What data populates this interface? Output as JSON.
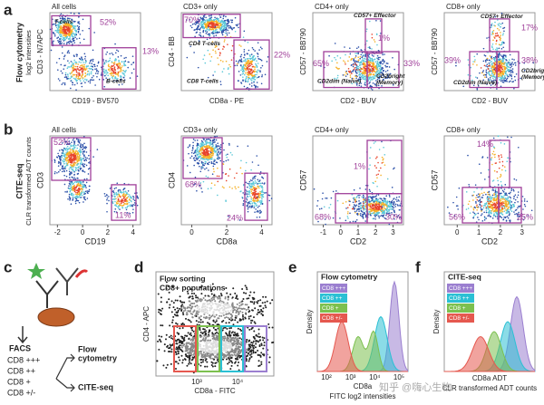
{
  "row_a": {
    "letter": "a",
    "ylabel": [
      "Flow cytometry",
      "log2 intensities"
    ],
    "panels": [
      {
        "title": "All cells",
        "xlabel": "CD19 - BV570",
        "ylabel": "CD3 - N7APC",
        "gates": [
          {
            "label": [
              "T-cells"
            ],
            "pct": "52%"
          },
          {
            "label": [
              "B-cells"
            ],
            "pct": "13%"
          }
        ]
      },
      {
        "title": "CD3+ only",
        "xlabel": "CD8a - PE",
        "ylabel": "CD4 - BB",
        "gates": [
          {
            "label": [
              "CD4 T-cells"
            ],
            "pct": "70%"
          },
          {
            "label": [
              "CD8 T-cells"
            ],
            "pct": "22%"
          }
        ]
      },
      {
        "title": "CD4+ only",
        "xlabel": "CD2 - BUV",
        "ylabel": "CD57 - BB790",
        "gates": [
          {
            "label": [
              "CD57+ Effector"
            ],
            "pct": "1%"
          },
          {
            "label": [
              "CD2dim (Naive)"
            ],
            "pct": "65%"
          },
          {
            "label": [
              "CD2bright",
              "(Memory)"
            ],
            "pct": "33%"
          }
        ]
      },
      {
        "title": "CD8+ only",
        "xlabel": "CD2 - BUV",
        "ylabel": "CD57 - BB790",
        "gates": [
          {
            "label": [
              "CD57+ Effector"
            ],
            "pct": "17%"
          },
          {
            "label": [
              "CD2dim (Naive)"
            ],
            "pct": "39%"
          },
          {
            "label": [
              "CD2bright",
              "(Memory)"
            ],
            "pct": "38%"
          }
        ]
      }
    ]
  },
  "row_b": {
    "letter": "b",
    "ylabel": [
      "CITE-seq",
      "CLR transformed ADT counts"
    ],
    "panels": [
      {
        "title": "All cells",
        "xlabel": "CD19",
        "ylabel": "CD3",
        "xticks": [
          -2,
          0,
          2,
          4
        ],
        "gates": [
          {
            "pct": "52%"
          },
          {
            "pct": "11%"
          }
        ]
      },
      {
        "title": "CD3+ only",
        "xlabel": "CD8a",
        "ylabel": "CD4",
        "xticks": [
          0,
          2,
          4
        ],
        "gates": [
          {
            "pct": "68%"
          },
          {
            "pct": "24%"
          }
        ]
      },
      {
        "title": "CD4+ only",
        "xlabel": "CD2",
        "ylabel": "CD57",
        "xticks": [
          -1,
          0,
          1,
          2,
          3
        ],
        "gates": [
          {
            "pct": "1%"
          },
          {
            "pct": "68%"
          },
          {
            "pct": "30%"
          }
        ]
      },
      {
        "title": "CD8+ only",
        "xlabel": "CD2",
        "ylabel": "CD57",
        "xticks": [
          0,
          1,
          2,
          3
        ],
        "gates": [
          {
            "pct": "14%"
          },
          {
            "pct": "56%"
          },
          {
            "pct": "25%"
          }
        ]
      }
    ]
  },
  "panel_c": {
    "letter": "c",
    "facs": "FACS",
    "groups": [
      "CD8 +++",
      "CD8 ++",
      "CD8 +",
      "CD8 +/-"
    ],
    "out1": [
      "Flow",
      "cytometry"
    ],
    "out2": "CITE-seq"
  },
  "panel_d": {
    "letter": "d",
    "title": [
      "Flow sorting",
      "CD8+ populations"
    ],
    "ylabel": "CD4 - APC",
    "xlabel": "CD8a - FITC",
    "xticks": [
      "10³",
      "10⁴"
    ]
  },
  "panel_e": {
    "letter": "e",
    "title": "Flow cytometry",
    "legend": [
      "CD8 +++",
      "CD8 ++",
      "CD8 +",
      "CD8 +/-"
    ],
    "ylabel": "Density",
    "xlabel": [
      "CD8a",
      "FITC log2 intensities"
    ],
    "xticks": [
      "10²",
      "10³",
      "10⁴",
      "10⁵"
    ]
  },
  "panel_f": {
    "letter": "f",
    "title": "CITE-seq",
    "legend": [
      "CD8 +++",
      "CD8 ++",
      "CD8 +",
      "CD8 +/-"
    ],
    "ylabel": "Density",
    "xlabel": [
      "CD8a ADT",
      "CLR transformed ADT counts"
    ]
  },
  "watermark": "知乎 @嗨心生物"
}
